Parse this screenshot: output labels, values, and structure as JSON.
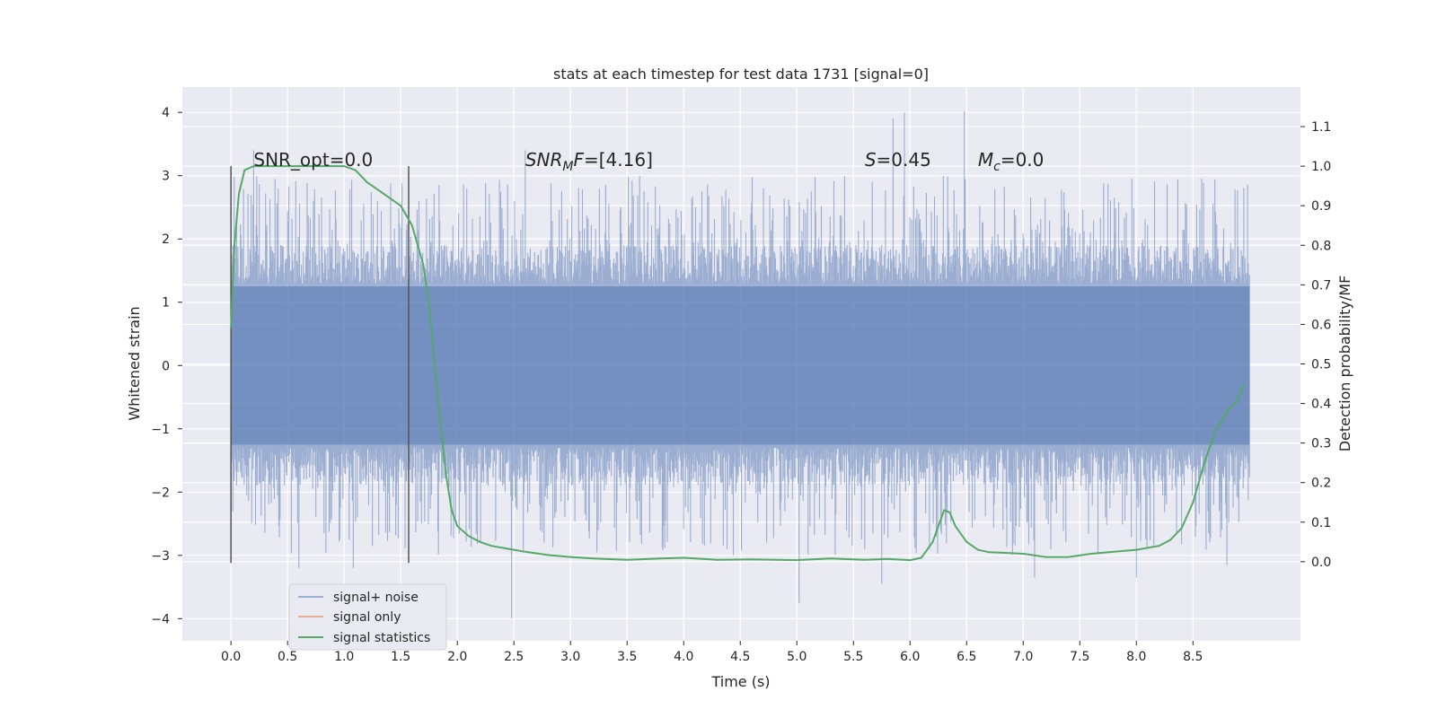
{
  "chart_data": {
    "type": "line",
    "title": "stats at each timestep for test data 1731 [signal=0]",
    "xlabel": "Time (s)",
    "ylabel_left": "Whitened strain",
    "ylabel_right": "Detection probability/MF",
    "xlim": [
      -0.43,
      9.45
    ],
    "ylim_left": [
      -4.35,
      4.4
    ],
    "ylim_right": [
      -0.2,
      1.2
    ],
    "x_ticks": [
      0.0,
      0.5,
      1.0,
      1.5,
      2.0,
      2.5,
      3.0,
      3.5,
      4.0,
      4.5,
      5.0,
      5.5,
      6.0,
      6.5,
      7.0,
      7.5,
      8.0,
      8.5
    ],
    "x_tick_labels": [
      "0.0",
      "0.5",
      "1.0",
      "1.5",
      "2.0",
      "2.5",
      "3.0",
      "3.5",
      "4.0",
      "4.5",
      "5.0",
      "5.5",
      "6.0",
      "6.5",
      "7.0",
      "7.5",
      "8.0",
      "8.5"
    ],
    "y_left_ticks": [
      4,
      3,
      2,
      1,
      0,
      -1,
      -2,
      -3,
      -4
    ],
    "y_left_tick_labels": [
      "4",
      "3",
      "2",
      "1",
      "0",
      "−1",
      "−2",
      "−3",
      "−4"
    ],
    "y_right_ticks": [
      1.1,
      1.0,
      0.9,
      0.8,
      0.7,
      0.6,
      0.5,
      0.4,
      0.3,
      0.2,
      0.1,
      0.0
    ],
    "y_right_tick_labels": [
      "1.1",
      "1.0",
      "0.9",
      "0.8",
      "0.7",
      "0.6",
      "0.5",
      "0.4",
      "0.3",
      "0.2",
      "0.1",
      "0.0"
    ],
    "grid": true,
    "legend_position": "lower-left",
    "background_color": "#eaeaf2",
    "series": [
      {
        "name": "signal+ noise",
        "color": "#4c72b0",
        "alpha": 0.5,
        "axis": "left",
        "x_range": [
          0.0,
          9.0
        ],
        "core_band": [
          -1.25,
          1.25
        ],
        "peak_points": [
          [
            0.2,
            3.4
          ],
          [
            0.6,
            -3.2
          ],
          [
            1.08,
            -3.2
          ],
          [
            2.48,
            -4.0
          ],
          [
            2.6,
            3.4
          ],
          [
            5.02,
            -3.75
          ],
          [
            5.75,
            -3.45
          ],
          [
            5.85,
            3.9
          ],
          [
            5.95,
            4.0
          ],
          [
            6.48,
            4.02
          ],
          [
            7.1,
            -3.35
          ],
          [
            8.0,
            -3.35
          ],
          [
            8.8,
            -3.15
          ]
        ]
      },
      {
        "name": "signal only",
        "color": "#dd8452",
        "axis": "left",
        "values": []
      },
      {
        "name": "signal statistics",
        "color": "#55a868",
        "axis": "right",
        "x": [
          0.0,
          0.03,
          0.07,
          0.12,
          0.2,
          0.35,
          0.5,
          0.7,
          0.9,
          1.0,
          1.1,
          1.2,
          1.3,
          1.4,
          1.5,
          1.6,
          1.7,
          1.75,
          1.8,
          1.85,
          1.9,
          1.95,
          2.0,
          2.1,
          2.2,
          2.3,
          2.4,
          2.5,
          2.6,
          2.8,
          3.0,
          3.2,
          3.5,
          3.8,
          4.0,
          4.3,
          4.6,
          5.0,
          5.3,
          5.6,
          5.8,
          6.0,
          6.1,
          6.2,
          6.3,
          6.35,
          6.4,
          6.5,
          6.6,
          6.7,
          6.8,
          7.0,
          7.2,
          7.4,
          7.6,
          7.8,
          8.0,
          8.2,
          8.3,
          8.4,
          8.5,
          8.6,
          8.7,
          8.8,
          8.9,
          8.95
        ],
        "values": [
          0.59,
          0.8,
          0.93,
          0.99,
          1.0,
          1.0,
          1.0,
          1.0,
          1.0,
          1.0,
          0.99,
          0.96,
          0.94,
          0.92,
          0.9,
          0.85,
          0.75,
          0.65,
          0.5,
          0.35,
          0.22,
          0.13,
          0.09,
          0.065,
          0.05,
          0.04,
          0.035,
          0.03,
          0.025,
          0.017,
          0.012,
          0.008,
          0.005,
          0.008,
          0.01,
          0.005,
          0.006,
          0.004,
          0.008,
          0.005,
          0.007,
          0.004,
          0.01,
          0.05,
          0.13,
          0.125,
          0.09,
          0.05,
          0.03,
          0.024,
          0.023,
          0.02,
          0.012,
          0.012,
          0.02,
          0.025,
          0.03,
          0.04,
          0.055,
          0.085,
          0.15,
          0.25,
          0.33,
          0.38,
          0.41,
          0.45
        ]
      }
    ],
    "vertical_lines": [
      0.0,
      1.57
    ],
    "vertical_line_range_left": [
      -3.12,
      3.15
    ],
    "annotations": [
      {
        "text": "SNR_opt=0.0",
        "x": 0.2
      },
      {
        "text": "SNRMF=[4.16]",
        "x": 2.6
      },
      {
        "text": "S=0.45",
        "x": 5.6
      },
      {
        "text": "Mc=0.0",
        "x": 6.6
      }
    ],
    "annotation_y_left": 3.15
  }
}
